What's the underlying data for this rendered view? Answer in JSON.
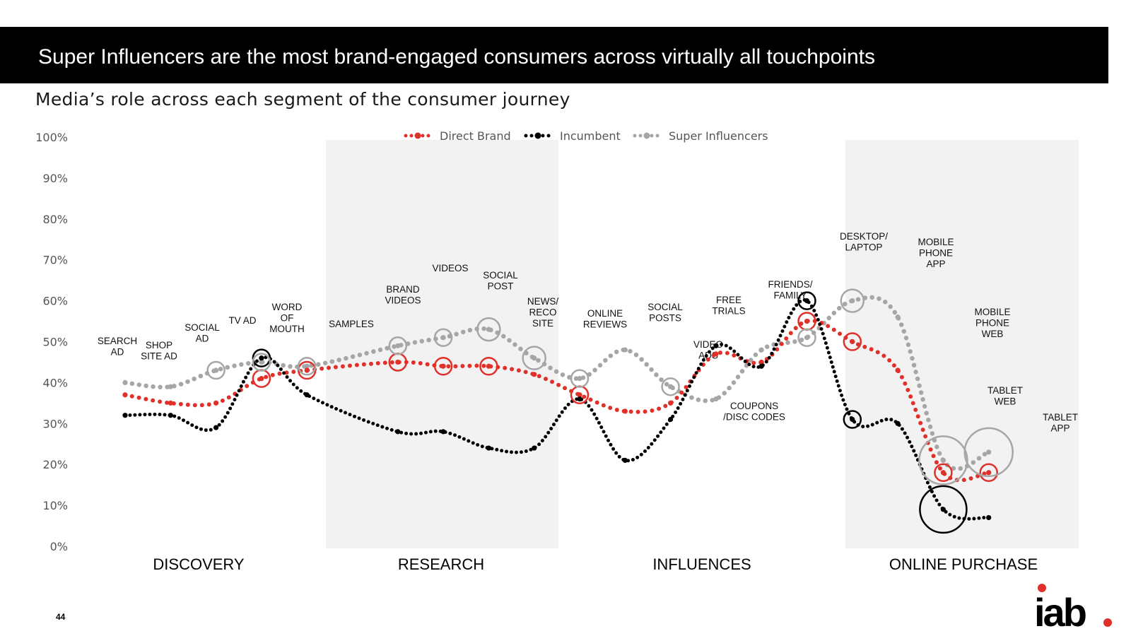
{
  "header": {
    "title": "Super Influencers are the most brand-engaged consumers across virtually all touchpoints",
    "subtitle": "Media’s role across each segment of the consumer journey"
  },
  "footer": {
    "page_number": "44",
    "logo_text": "iab"
  },
  "colors": {
    "direct_brand": "#e0302a",
    "incumbent": "#000000",
    "super_influencers": "#a6a6a6",
    "shade": "#f2f2f2",
    "logo_dot": "#e0302a"
  },
  "chart_data": {
    "type": "line",
    "title": "Media’s role across each segment of the consumer journey",
    "ylabel": "",
    "ylim": [
      0,
      100
    ],
    "yticks": [
      0,
      10,
      20,
      30,
      40,
      50,
      60,
      70,
      80,
      90,
      100
    ],
    "ytick_labels": [
      "0%",
      "10%",
      "20%",
      "30%",
      "40%",
      "50%",
      "60%",
      "70%",
      "80%",
      "90%",
      "100%"
    ],
    "legend_position": "top-center",
    "categories": [
      "SEARCH AD",
      "SHOP SITE AD",
      "SOCIAL AD",
      "TV AD",
      "WORD OF MOUTH",
      "SAMPLES",
      "BRAND VIDEOS",
      "VIDEOS",
      "SOCIAL POST",
      "NEWS/ RECO SITE",
      "ONLINE REVIEWS",
      "SOCIAL POSTS",
      "VIDEO ADS",
      "COUPONS /DISC CODES",
      "FREE TRIALS",
      "FRIENDS/ FAMILY",
      "DESKTOP/ LAPTOP",
      "MOBILE PHONE APP",
      "MOBILE PHONE WEB",
      "TABLET WEB",
      "TABLET APP"
    ],
    "point_labels": [
      [
        "SEARCH",
        "AD"
      ],
      [
        "SHOP",
        "SITE AD"
      ],
      [
        "SOCIAL",
        "AD"
      ],
      [
        "TV AD"
      ],
      [
        "WORD",
        "OF",
        "MOUTH"
      ],
      [
        "SAMPLES"
      ],
      [
        "BRAND",
        "VIDEOS"
      ],
      [
        "VIDEOS"
      ],
      [
        "SOCIAL",
        "POST"
      ],
      [
        "NEWS/",
        "RECO",
        "SITE"
      ],
      [
        "ONLINE",
        "REVIEWS"
      ],
      [
        "SOCIAL",
        "POSTS"
      ],
      [
        "VIDEO",
        "ADS"
      ],
      [
        "COUPONS",
        "/DISC CODES"
      ],
      [
        "FREE",
        "TRIALS"
      ],
      [
        "FRIENDS/",
        "FAMILY"
      ],
      [
        "DESKTOP/",
        "LAPTOP"
      ],
      [
        "MOBILE",
        "PHONE",
        "APP"
      ],
      [
        "MOBILE",
        "PHONE",
        "WEB"
      ],
      [
        "TABLET",
        "WEB"
      ],
      [
        "TABLET",
        "APP"
      ]
    ],
    "segments": [
      {
        "name": "DISCOVERY",
        "shaded": false
      },
      {
        "name": "RESEARCH",
        "shaded": true
      },
      {
        "name": "INFLUENCES",
        "shaded": false
      },
      {
        "name": "ONLINE PURCHASE",
        "shaded": true
      }
    ],
    "series": [
      {
        "name": "Direct Brand",
        "key": "direct_brand",
        "x": [
          1,
          2,
          3,
          4,
          5,
          7,
          8,
          9,
          10,
          11,
          12,
          13,
          14,
          15,
          16,
          17,
          18,
          19,
          20
        ],
        "values": [
          37,
          35,
          35,
          41,
          43,
          45,
          44,
          44,
          42,
          37,
          33,
          35,
          47,
          45,
          55,
          50,
          43,
          18,
          18
        ],
        "circled": [
          4,
          5,
          7,
          8,
          9,
          11,
          16,
          17,
          19,
          20
        ]
      },
      {
        "name": "Incumbent",
        "key": "incumbent",
        "x": [
          1,
          2,
          3,
          4,
          5,
          7,
          8,
          9,
          10,
          11,
          12,
          13,
          14,
          15,
          16,
          17,
          18,
          19,
          20
        ],
        "values": [
          32,
          32,
          29,
          46,
          37,
          28,
          28,
          24,
          24,
          36,
          21,
          31,
          49,
          44,
          60,
          31,
          30,
          9,
          7
        ],
        "circled": [
          4,
          16,
          17,
          19
        ]
      },
      {
        "name": "Super Influencers",
        "key": "super_influencers",
        "x": [
          1,
          2,
          3,
          4,
          5,
          7,
          8,
          9,
          10,
          11,
          12,
          13,
          14,
          15,
          16,
          17,
          18,
          19,
          20
        ],
        "values": [
          40,
          39,
          43,
          45,
          44,
          49,
          51,
          53,
          46,
          41,
          48,
          39,
          36,
          48,
          51,
          60,
          56,
          21,
          23
        ],
        "circled": [
          3,
          4,
          5,
          7,
          8,
          9,
          10,
          11,
          13,
          16,
          17,
          19,
          20
        ]
      }
    ]
  }
}
